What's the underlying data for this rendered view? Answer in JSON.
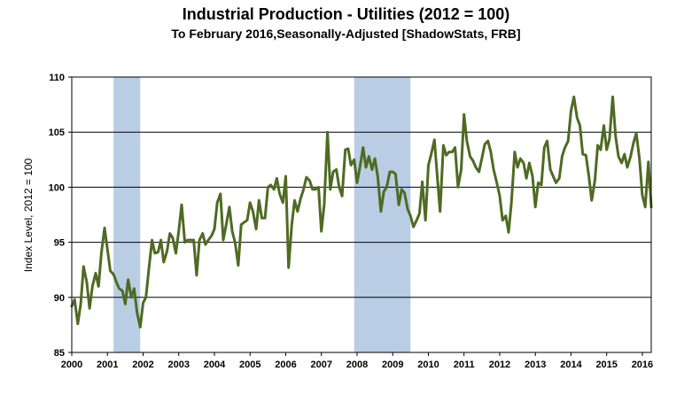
{
  "chart_data": {
    "type": "line",
    "title": "Industrial Production - Utilities (2012 = 100)",
    "subtitle": "To February 2016,Seasonally-Adjusted [ShadowStats, FRB]",
    "ylabel": "Index Level, 2012 = 100",
    "xlabel": "",
    "xlim": [
      2000.0,
      2016.25
    ],
    "ylim": [
      85,
      110
    ],
    "yticks": [
      85,
      90,
      95,
      100,
      105,
      110
    ],
    "xticks": [
      "2000",
      "2001",
      "2002",
      "2003",
      "2004",
      "2005",
      "2006",
      "2007",
      "2008",
      "2009",
      "2010",
      "2011",
      "2012",
      "2013",
      "2014",
      "2015",
      "2016"
    ],
    "grid": "horizontal",
    "legend": "none",
    "colors": {
      "line": "#4e6b22",
      "recession": "#b9cde5",
      "grid": "#000000"
    },
    "recessions": [
      [
        2001.17,
        2001.92
      ],
      [
        2007.92,
        2009.5
      ]
    ],
    "series": [
      {
        "points": [
          [
            2000.0,
            89.2
          ],
          [
            2000.08,
            89.8
          ],
          [
            2000.17,
            87.6
          ],
          [
            2000.25,
            89.4
          ],
          [
            2000.33,
            92.8
          ],
          [
            2000.42,
            91.4
          ],
          [
            2000.5,
            89.0
          ],
          [
            2000.58,
            91.0
          ],
          [
            2000.67,
            92.2
          ],
          [
            2000.75,
            91.0
          ],
          [
            2000.83,
            94.0
          ],
          [
            2000.92,
            96.3
          ],
          [
            2001.0,
            94.4
          ],
          [
            2001.08,
            92.4
          ],
          [
            2001.17,
            92.1
          ],
          [
            2001.25,
            91.4
          ],
          [
            2001.33,
            90.8
          ],
          [
            2001.42,
            90.6
          ],
          [
            2001.5,
            89.4
          ],
          [
            2001.58,
            91.6
          ],
          [
            2001.67,
            90.0
          ],
          [
            2001.75,
            90.8
          ],
          [
            2001.83,
            88.6
          ],
          [
            2001.92,
            87.3
          ],
          [
            2002.0,
            89.5
          ],
          [
            2002.08,
            90.0
          ],
          [
            2002.17,
            92.8
          ],
          [
            2002.25,
            95.2
          ],
          [
            2002.33,
            94.0
          ],
          [
            2002.42,
            94.1
          ],
          [
            2002.5,
            95.2
          ],
          [
            2002.58,
            93.2
          ],
          [
            2002.67,
            94.2
          ],
          [
            2002.75,
            95.8
          ],
          [
            2002.83,
            95.4
          ],
          [
            2002.92,
            94.0
          ],
          [
            2003.0,
            96.0
          ],
          [
            2003.08,
            98.4
          ],
          [
            2003.17,
            95.0
          ],
          [
            2003.25,
            95.2
          ],
          [
            2003.33,
            95.2
          ],
          [
            2003.42,
            95.2
          ],
          [
            2003.5,
            92.0
          ],
          [
            2003.58,
            95.2
          ],
          [
            2003.67,
            95.8
          ],
          [
            2003.75,
            94.8
          ],
          [
            2003.83,
            95.2
          ],
          [
            2003.92,
            95.6
          ],
          [
            2004.0,
            96.2
          ],
          [
            2004.08,
            98.6
          ],
          [
            2004.17,
            99.4
          ],
          [
            2004.25,
            95.2
          ],
          [
            2004.33,
            96.6
          ],
          [
            2004.42,
            98.2
          ],
          [
            2004.5,
            96.0
          ],
          [
            2004.58,
            95.0
          ],
          [
            2004.67,
            92.9
          ],
          [
            2004.75,
            96.6
          ],
          [
            2004.83,
            96.8
          ],
          [
            2004.92,
            97.0
          ],
          [
            2005.0,
            98.6
          ],
          [
            2005.08,
            97.8
          ],
          [
            2005.17,
            96.2
          ],
          [
            2005.25,
            98.8
          ],
          [
            2005.33,
            97.2
          ],
          [
            2005.42,
            97.2
          ],
          [
            2005.5,
            100.0
          ],
          [
            2005.58,
            100.2
          ],
          [
            2005.67,
            99.8
          ],
          [
            2005.75,
            100.8
          ],
          [
            2005.83,
            99.4
          ],
          [
            2005.92,
            98.6
          ],
          [
            2006.0,
            101.0
          ],
          [
            2006.08,
            92.7
          ],
          [
            2006.17,
            96.6
          ],
          [
            2006.25,
            98.8
          ],
          [
            2006.33,
            97.8
          ],
          [
            2006.42,
            99.0
          ],
          [
            2006.5,
            99.8
          ],
          [
            2006.58,
            100.9
          ],
          [
            2006.67,
            100.6
          ],
          [
            2006.75,
            99.8
          ],
          [
            2006.83,
            99.8
          ],
          [
            2006.92,
            100.0
          ],
          [
            2007.0,
            96.0
          ],
          [
            2007.08,
            98.4
          ],
          [
            2007.17,
            105.0
          ],
          [
            2007.25,
            99.8
          ],
          [
            2007.33,
            101.4
          ],
          [
            2007.42,
            101.6
          ],
          [
            2007.5,
            100.0
          ],
          [
            2007.58,
            99.2
          ],
          [
            2007.67,
            103.4
          ],
          [
            2007.75,
            103.5
          ],
          [
            2007.83,
            102.0
          ],
          [
            2007.92,
            102.5
          ],
          [
            2008.0,
            100.4
          ],
          [
            2008.08,
            101.8
          ],
          [
            2008.17,
            103.6
          ],
          [
            2008.25,
            101.8
          ],
          [
            2008.33,
            102.8
          ],
          [
            2008.42,
            101.6
          ],
          [
            2008.5,
            102.6
          ],
          [
            2008.58,
            101.0
          ],
          [
            2008.67,
            97.8
          ],
          [
            2008.75,
            99.6
          ],
          [
            2008.83,
            100.0
          ],
          [
            2008.92,
            101.4
          ],
          [
            2009.0,
            101.4
          ],
          [
            2009.08,
            101.2
          ],
          [
            2009.17,
            98.4
          ],
          [
            2009.25,
            99.8
          ],
          [
            2009.33,
            99.5
          ],
          [
            2009.42,
            98.0
          ],
          [
            2009.5,
            97.4
          ],
          [
            2009.58,
            96.4
          ],
          [
            2009.67,
            97.0
          ],
          [
            2009.75,
            97.6
          ],
          [
            2009.83,
            100.5
          ],
          [
            2009.92,
            97.0
          ],
          [
            2010.0,
            102.0
          ],
          [
            2010.08,
            103.0
          ],
          [
            2010.17,
            104.3
          ],
          [
            2010.25,
            101.0
          ],
          [
            2010.33,
            97.8
          ],
          [
            2010.42,
            103.8
          ],
          [
            2010.5,
            102.9
          ],
          [
            2010.58,
            103.2
          ],
          [
            2010.67,
            103.2
          ],
          [
            2010.75,
            103.6
          ],
          [
            2010.83,
            100.0
          ],
          [
            2010.92,
            101.6
          ],
          [
            2011.0,
            106.6
          ],
          [
            2011.08,
            104.2
          ],
          [
            2011.17,
            102.8
          ],
          [
            2011.25,
            102.4
          ],
          [
            2011.33,
            101.8
          ],
          [
            2011.42,
            101.4
          ],
          [
            2011.5,
            102.6
          ],
          [
            2011.58,
            103.9
          ],
          [
            2011.67,
            104.2
          ],
          [
            2011.75,
            103.2
          ],
          [
            2011.83,
            101.6
          ],
          [
            2011.92,
            100.4
          ],
          [
            2012.0,
            99.2
          ],
          [
            2012.08,
            97.0
          ],
          [
            2012.17,
            97.4
          ],
          [
            2012.25,
            95.9
          ],
          [
            2012.33,
            98.6
          ],
          [
            2012.42,
            103.2
          ],
          [
            2012.5,
            101.8
          ],
          [
            2012.58,
            102.6
          ],
          [
            2012.67,
            102.2
          ],
          [
            2012.75,
            100.8
          ],
          [
            2012.83,
            102.2
          ],
          [
            2012.92,
            101.0
          ],
          [
            2013.0,
            98.2
          ],
          [
            2013.08,
            100.4
          ],
          [
            2013.17,
            100.2
          ],
          [
            2013.25,
            103.6
          ],
          [
            2013.33,
            104.2
          ],
          [
            2013.42,
            101.6
          ],
          [
            2013.5,
            101.0
          ],
          [
            2013.58,
            100.4
          ],
          [
            2013.67,
            100.8
          ],
          [
            2013.75,
            102.8
          ],
          [
            2013.83,
            103.6
          ],
          [
            2013.92,
            104.2
          ],
          [
            2014.0,
            106.9
          ],
          [
            2014.08,
            108.2
          ],
          [
            2014.17,
            106.3
          ],
          [
            2014.25,
            105.6
          ],
          [
            2014.33,
            103.0
          ],
          [
            2014.42,
            102.9
          ],
          [
            2014.5,
            101.0
          ],
          [
            2014.58,
            98.8
          ],
          [
            2014.67,
            100.6
          ],
          [
            2014.75,
            103.8
          ],
          [
            2014.83,
            103.4
          ],
          [
            2014.92,
            105.6
          ],
          [
            2015.0,
            103.4
          ],
          [
            2015.08,
            104.4
          ],
          [
            2015.17,
            108.2
          ],
          [
            2015.25,
            104.6
          ],
          [
            2015.33,
            102.8
          ],
          [
            2015.42,
            102.2
          ],
          [
            2015.5,
            103.0
          ],
          [
            2015.58,
            101.8
          ],
          [
            2015.67,
            102.8
          ],
          [
            2015.75,
            104.0
          ],
          [
            2015.83,
            104.9
          ],
          [
            2015.92,
            102.6
          ],
          [
            2016.0,
            99.3
          ],
          [
            2016.08,
            98.2
          ],
          [
            2016.17,
            102.3
          ],
          [
            2016.25,
            98.2
          ]
        ]
      }
    ]
  }
}
